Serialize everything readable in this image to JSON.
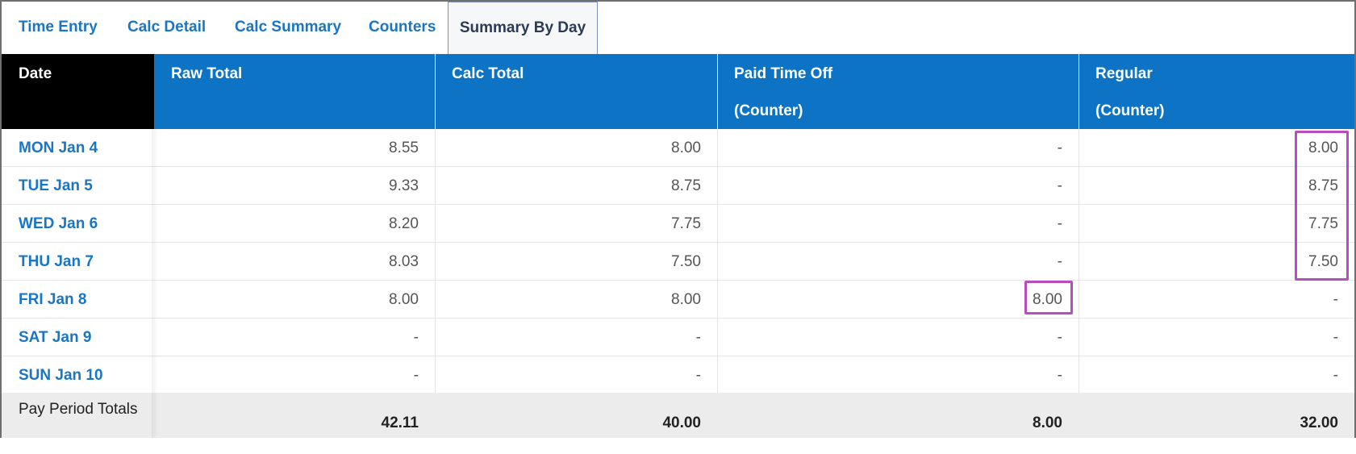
{
  "tabs": [
    {
      "label": "Time Entry",
      "active": false
    },
    {
      "label": "Calc Detail",
      "active": false
    },
    {
      "label": "Calc Summary",
      "active": false
    },
    {
      "label": "Counters",
      "active": false
    },
    {
      "label": "Summary By Day",
      "active": true
    }
  ],
  "table": {
    "headers": {
      "date": "Date",
      "raw_total": "Raw Total",
      "calc_total": "Calc Total",
      "paid_time_off": "Paid Time Off",
      "paid_time_off_sub": "(Counter)",
      "regular": "Regular",
      "regular_sub": "(Counter)"
    },
    "rows": [
      {
        "date": "MON Jan 4",
        "raw_total": "8.55",
        "calc_total": "8.00",
        "paid_time_off": "-",
        "regular": "8.00"
      },
      {
        "date": "TUE Jan 5",
        "raw_total": "9.33",
        "calc_total": "8.75",
        "paid_time_off": "-",
        "regular": "8.75"
      },
      {
        "date": "WED Jan 6",
        "raw_total": "8.20",
        "calc_total": "7.75",
        "paid_time_off": "-",
        "regular": "7.75"
      },
      {
        "date": "THU Jan 7",
        "raw_total": "8.03",
        "calc_total": "7.50",
        "paid_time_off": "-",
        "regular": "7.50"
      },
      {
        "date": "FRI Jan 8",
        "raw_total": "8.00",
        "calc_total": "8.00",
        "paid_time_off": "8.00",
        "regular": "-"
      },
      {
        "date": "SAT Jan 9",
        "raw_total": "-",
        "calc_total": "-",
        "paid_time_off": "-",
        "regular": "-"
      },
      {
        "date": "SUN Jan 10",
        "raw_total": "-",
        "calc_total": "-",
        "paid_time_off": "-",
        "regular": "-"
      }
    ],
    "totals": {
      "label": "Pay Period Totals",
      "raw_total": "42.11",
      "calc_total": "40.00",
      "paid_time_off": "8.00",
      "regular": "32.00"
    }
  },
  "colors": {
    "header_blue": "#0d73c4",
    "link_blue": "#1a76c4",
    "highlight": "#b84dbf",
    "totals_bg": "#ececec"
  }
}
